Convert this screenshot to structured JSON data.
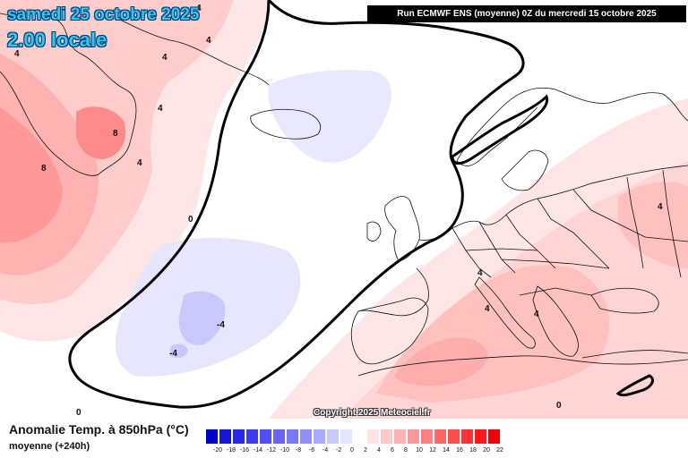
{
  "header": {
    "date": "samedi 25 octobre 2025",
    "local_time": "2.00 locale",
    "run_info": "Run ECMWF ENS (moyenne) 0Z du mercredi 15 octobre 2025"
  },
  "footer": {
    "field_title": "Anomalie Temp. à 850hPa (°C)",
    "field_subtitle": "moyenne   (+240h)",
    "copyright": "Copyright 2025 Meteociel.fr"
  },
  "legend": {
    "ticks": [
      "-20",
      "-18",
      "-16",
      "-14",
      "-12",
      "-10",
      "-8",
      "-6",
      "-4",
      "-2",
      "0",
      "2",
      "4",
      "6",
      "8",
      "10",
      "12",
      "14",
      "16",
      "18",
      "20",
      "22"
    ],
    "colors": [
      "#0000c8",
      "#1414dc",
      "#2828e6",
      "#3c3cf0",
      "#5050f5",
      "#6464f8",
      "#7878fa",
      "#9090fb",
      "#aaaafc",
      "#c8c8fd",
      "#e6e6fe",
      "#ffffff",
      "#ffe6e6",
      "#ffcccc",
      "#ffb2b2",
      "#ff9999",
      "#ff8080",
      "#ff6666",
      "#ff4d4d",
      "#ff3333",
      "#ff1a1a",
      "#f00000"
    ]
  },
  "contours": [
    {
      "id": "greenland-4a",
      "value": "4"
    },
    {
      "id": "greenland-4b",
      "value": "4"
    },
    {
      "id": "greenland-4c",
      "value": "4"
    },
    {
      "id": "greenland-4d",
      "value": "4"
    },
    {
      "id": "greenland-8a",
      "value": "8"
    },
    {
      "id": "greenland-8b",
      "value": "8"
    },
    {
      "id": "greenland-4e",
      "value": "4"
    },
    {
      "id": "atlantic-0a",
      "value": "0"
    },
    {
      "id": "atlantic-0b",
      "value": "0"
    },
    {
      "id": "atlantic-0c",
      "value": "0"
    },
    {
      "id": "azores-neg4",
      "value": "-4"
    },
    {
      "id": "azores-neg4b",
      "value": "-4"
    },
    {
      "id": "europe-4a",
      "value": "4"
    },
    {
      "id": "europe-4b",
      "value": "4"
    },
    {
      "id": "europe-4c",
      "value": "4"
    },
    {
      "id": "russia-4",
      "value": "4"
    },
    {
      "id": "greenland-4f",
      "value": "4"
    }
  ]
}
